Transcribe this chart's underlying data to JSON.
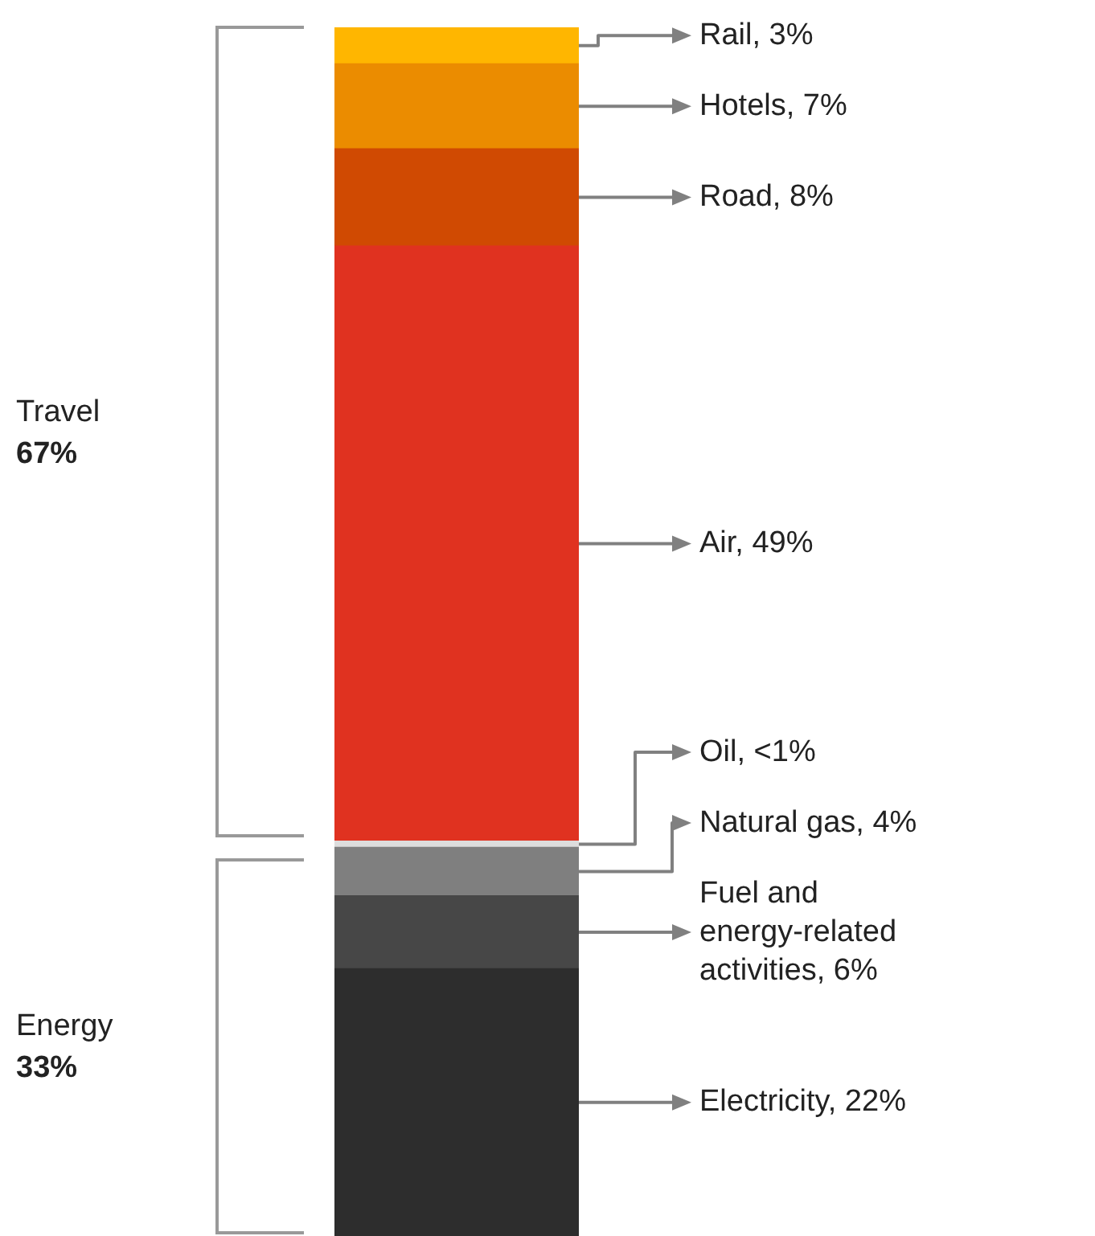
{
  "chart_data": {
    "type": "bar",
    "stacked": true,
    "categories": [
      null
    ],
    "series": [
      {
        "color": "#2d2d2d",
        "values": [
          22
        ],
        "value_labels": [
          "Electricity, 22%"
        ]
      },
      {
        "color": "#474747",
        "values": [
          6
        ],
        "value_labels": [
          "Fuel and energy-related activities, 6%"
        ]
      },
      {
        "color": "#7f7f7f",
        "values": [
          4
        ],
        "value_labels": [
          "Natural gas, 4%"
        ]
      },
      {
        "color": "#dddddd",
        "values": [
          0.5
        ],
        "value_labels": [
          "Oil, <1%"
        ]
      },
      {
        "color": "#e03220",
        "values": [
          49
        ],
        "value_labels": [
          "Air, 49%"
        ]
      },
      {
        "color": "#d04a02",
        "values": [
          8
        ],
        "value_labels": [
          "Road, 8%"
        ]
      },
      {
        "color": "#eb8c00",
        "values": [
          7
        ],
        "value_labels": [
          "Hotels, 7%"
        ]
      },
      {
        "color": "#ffb600",
        "values": [
          3
        ],
        "value_labels": [
          "Rail, 3%"
        ]
      }
    ],
    "annotations": [
      "Travel 67%",
      "Energy 33%"
    ],
    "legend": false
  }
}
